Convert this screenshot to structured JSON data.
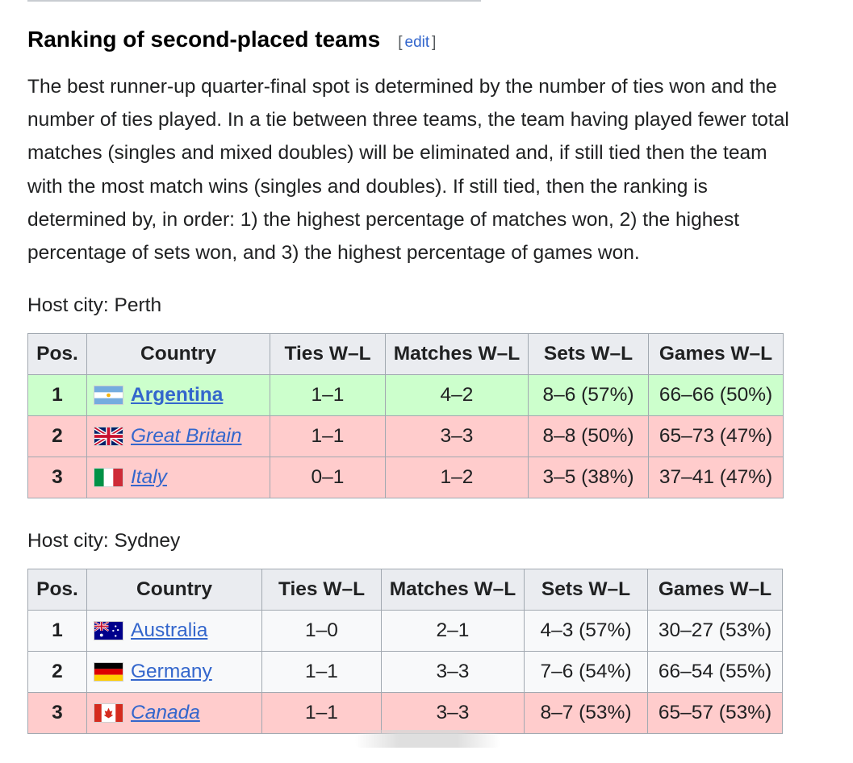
{
  "section": {
    "title": "Ranking of second-placed teams",
    "edit_open": "[",
    "edit_label": "edit",
    "edit_close": "]",
    "paragraph": "The best runner-up quarter-final spot is determined by the number of ties won and the number of ties played. In a tie between three teams, the team having played fewer total matches (singles and mixed doubles) will be eliminated and, if still tied then the team with the most match wins (singles and doubles). If still tied, then the ranking is determined by, in order: 1) the highest percentage of matches won, 2) the highest percentage of sets won, and 3) the highest percentage of games won."
  },
  "tables": [
    {
      "caption": "Host city: Perth",
      "headers": [
        "Pos.",
        "Country",
        "Ties W–L",
        "Matches W–L",
        "Sets W–L",
        "Games W–L"
      ],
      "rows": [
        {
          "pos": "1",
          "flag": "argentina-flag-icon",
          "country": "Argentina",
          "ties": "1–1",
          "matches": "4–2",
          "sets": "8–6 (57%)",
          "games": "66–66 (50%)"
        },
        {
          "pos": "2",
          "flag": "great-britain-flag-icon",
          "country": "Great Britain",
          "ties": "1–1",
          "matches": "3–3",
          "sets": "8–8 (50%)",
          "games": "65–73 (47%)"
        },
        {
          "pos": "3",
          "flag": "italy-flag-icon",
          "country": "Italy",
          "ties": "0–1",
          "matches": "1–2",
          "sets": "3–5 (38%)",
          "games": "37–41 (47%)"
        }
      ]
    },
    {
      "caption": "Host city: Sydney",
      "headers": [
        "Pos.",
        "Country",
        "Ties W–L",
        "Matches W–L",
        "Sets W–L",
        "Games W–L"
      ],
      "rows": [
        {
          "pos": "1",
          "flag": "australia-flag-icon",
          "country": "Australia",
          "ties": "1–0",
          "matches": "2–1",
          "sets": "4–3 (57%)",
          "games": "30–27 (53%)"
        },
        {
          "pos": "2",
          "flag": "germany-flag-icon",
          "country": "Germany",
          "ties": "1–1",
          "matches": "3–3",
          "sets": "7–6 (54%)",
          "games": "66–54 (55%)"
        },
        {
          "pos": "3",
          "flag": "canada-flag-icon",
          "country": "Canada",
          "ties": "1–1",
          "matches": "3–3",
          "sets": "8–7 (53%)",
          "games": "65–57 (53%)"
        }
      ]
    }
  ],
  "colors": {
    "advanced_row": "#ccffcc",
    "eliminated_row": "#ffcccc",
    "neutral_row": "#f8f9fa",
    "header_bg": "#eaecf0",
    "link": "#3366cc"
  }
}
